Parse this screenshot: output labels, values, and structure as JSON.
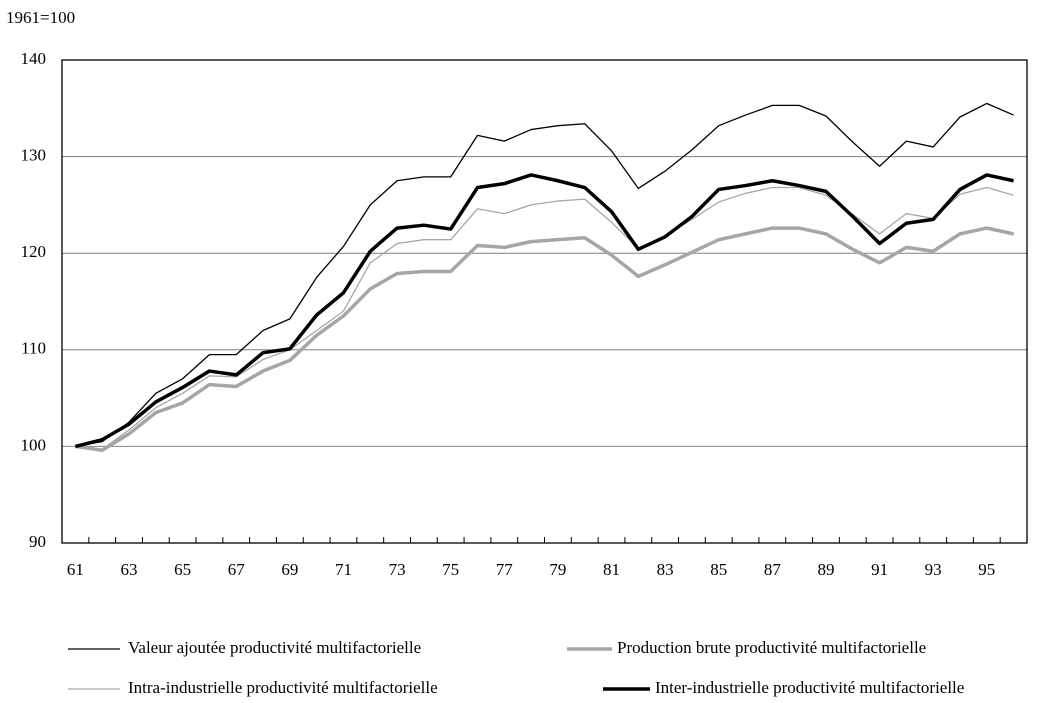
{
  "chart_data": {
    "type": "line",
    "y_label": "1961=100",
    "categories": [
      "61",
      null,
      "63",
      null,
      "65",
      null,
      "67",
      null,
      "69",
      null,
      "71",
      null,
      "73",
      null,
      "75",
      null,
      "77",
      null,
      "79",
      null,
      "81",
      null,
      "83",
      null,
      "85",
      null,
      "87",
      null,
      "89",
      null,
      "91",
      null,
      "93",
      null,
      "95",
      null
    ],
    "ylim": [
      90,
      140
    ],
    "yticks": [
      90,
      100,
      110,
      120,
      130,
      140
    ],
    "grid": true,
    "series": [
      {
        "name": "Valeur ajoutée productivité multifactorielle",
        "color": "#000000",
        "line_width": 1.3,
        "values": [
          100,
          100.5,
          102.5,
          105.5,
          107,
          109.5,
          109.5,
          112,
          113.2,
          117.5,
          120.7,
          125,
          127.5,
          127.9,
          127.9,
          132.2,
          131.6,
          132.8,
          133.2,
          133.4,
          130.6,
          126.7,
          128.5,
          130.7,
          133.2,
          134.3,
          135.3,
          135.3,
          134.2,
          131.5,
          129,
          131.6,
          131,
          134.1,
          135.5,
          134.3
        ]
      },
      {
        "name": "Production brute productivité multifactorielle",
        "color": "#a6a6a6",
        "line_width": 3.5,
        "values": [
          100,
          99.6,
          101.3,
          103.5,
          104.5,
          106.4,
          106.2,
          107.8,
          108.9,
          111.5,
          113.5,
          116.3,
          117.9,
          118.1,
          118.1,
          120.8,
          120.6,
          121.2,
          121.4,
          121.6,
          119.8,
          117.6,
          118.8,
          120.1,
          121.4,
          122,
          122.6,
          122.6,
          122,
          120.4,
          119,
          120.6,
          120.2,
          122,
          122.6,
          122
        ]
      },
      {
        "name": "Intra-industrielle productivité multifactorielle",
        "color": "#a6a6a6",
        "line_width": 1.3,
        "values": [
          100,
          99.7,
          101.7,
          104,
          105.5,
          107.3,
          107.2,
          109,
          110,
          112,
          114,
          119,
          121,
          121.4,
          121.4,
          124.6,
          124.1,
          125,
          125.4,
          125.6,
          123.2,
          120.5,
          121.8,
          123.5,
          125.3,
          126.2,
          126.8,
          126.8,
          126,
          124,
          122,
          124.1,
          123.6,
          126.1,
          126.8,
          126
        ]
      },
      {
        "name": "Inter-industrielle productivité multifactorielle",
        "color": "#000000",
        "line_width": 3.5,
        "values": [
          100,
          100.7,
          102.3,
          104.6,
          106.1,
          107.8,
          107.4,
          109.7,
          110.1,
          113.6,
          115.9,
          120.2,
          122.6,
          122.9,
          122.5,
          126.8,
          127.2,
          128.1,
          127.5,
          126.8,
          124.3,
          120.4,
          121.7,
          123.8,
          126.6,
          127,
          127.5,
          127,
          126.4,
          123.8,
          121,
          123.1,
          123.5,
          126.6,
          128.1,
          127.5
        ]
      }
    ]
  }
}
